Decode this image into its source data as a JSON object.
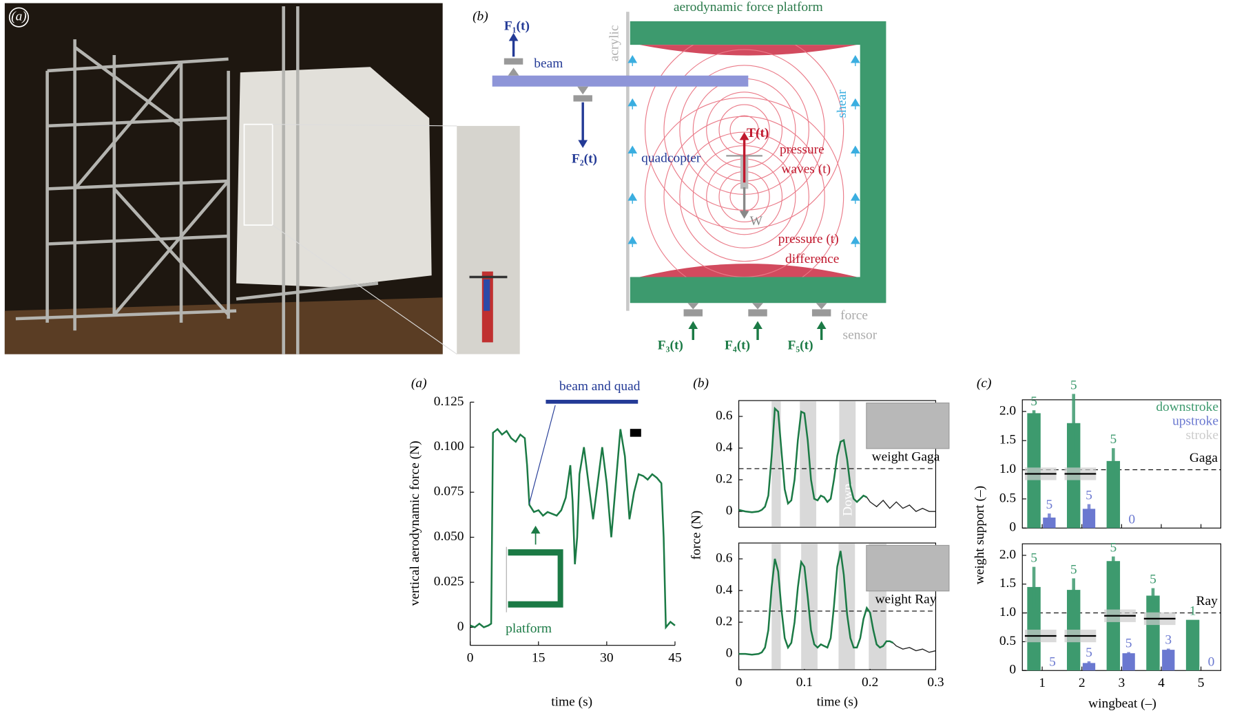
{
  "photo": {
    "label": "(a)"
  },
  "diagram": {
    "label": "(b)",
    "title": "aerodynamic force platform",
    "f1": "F₁(t)",
    "f2": "F₂(t)",
    "beam": "beam",
    "acrylic": "acrylic",
    "quadcopter": "quadcopter",
    "thrust": "T(t)",
    "weight": "W",
    "pressure_waves": [
      "pressure",
      "waves (t)"
    ],
    "shear": "shear",
    "pressure_difference": [
      "pressure (t)",
      "difference"
    ],
    "f3": "F₃(t)",
    "f4": "F₄(t)",
    "f5": "F₅(t)",
    "force_sensor": [
      "force",
      "sensor"
    ]
  },
  "chart_data": [
    {
      "type": "line",
      "panel": "(a)",
      "y_label": "vertical aerodynamic force (N)",
      "x_label": "time (s)",
      "beam_label": "beam and quad",
      "platform_label": "platform",
      "xlim": [
        0,
        45
      ],
      "xticks": [
        0,
        15,
        30,
        45
      ],
      "ylim": [
        -0.01,
        0.125
      ],
      "yticks": [
        0,
        0.025,
        {
          "value": 0.05,
          "label": "0.050"
        },
        0.075,
        {
          "value": 0.1,
          "label": "0.100"
        },
        0.125
      ],
      "x": [
        0,
        1,
        2,
        3,
        4,
        4.6,
        5,
        6,
        7,
        8,
        9,
        10,
        11,
        12,
        12.5,
        13,
        14,
        15,
        16,
        17,
        18,
        19,
        20,
        21,
        22,
        22.5,
        23,
        23.5,
        24,
        25,
        26,
        27,
        28,
        29,
        30,
        31,
        32,
        33,
        34,
        35,
        36,
        37,
        38,
        39,
        40,
        41,
        42,
        42.5,
        43,
        44,
        45
      ],
      "series": [
        {
          "color": "#1b7a45",
          "values": [
            0.001,
            0.0,
            0.002,
            0.0,
            0.001,
            0.002,
            0.108,
            0.11,
            0.107,
            0.109,
            0.105,
            0.103,
            0.107,
            0.105,
            0.09,
            0.068,
            0.064,
            0.065,
            0.062,
            0.064,
            0.063,
            0.062,
            0.065,
            0.072,
            0.09,
            0.07,
            0.035,
            0.05,
            0.085,
            0.1,
            0.08,
            0.06,
            0.08,
            0.1,
            0.08,
            0.05,
            0.08,
            0.11,
            0.095,
            0.06,
            0.075,
            0.085,
            0.084,
            0.082,
            0.085,
            0.083,
            0.08,
            0.05,
            0.0,
            0.003,
            0.001
          ]
        }
      ]
    },
    {
      "type": "line",
      "panel": "(b)",
      "y_label": "force (N)",
      "weight_label": "weight Gaga",
      "stroke_label": "Down",
      "weight": 0.27,
      "xlim": [
        0,
        0.3
      ],
      "ylim": [
        -0.1,
        0.7
      ],
      "yticks": [
        0,
        0.2,
        0.4,
        0.6
      ],
      "bands": [
        [
          0.05,
          0.064
        ],
        [
          0.093,
          0.118
        ],
        [
          0.153,
          0.178
        ]
      ],
      "x": [
        0,
        0.01,
        0.02,
        0.03,
        0.035,
        0.04,
        0.045,
        0.05,
        0.055,
        0.06,
        0.065,
        0.07,
        0.075,
        0.08,
        0.085,
        0.09,
        0.095,
        0.1,
        0.105,
        0.11,
        0.115,
        0.12,
        0.125,
        0.13,
        0.135,
        0.14,
        0.145,
        0.15,
        0.155,
        0.16,
        0.165,
        0.17,
        0.175,
        0.18,
        0.185,
        0.19,
        0.195,
        0.2,
        0.21,
        0.22,
        0.23,
        0.24,
        0.25,
        0.26,
        0.27,
        0.28,
        0.29,
        0.3
      ],
      "series": [
        {
          "color": "#1b7a45",
          "values": [
            0.01,
            0.0,
            -0.005,
            0.0,
            0.01,
            0.03,
            0.1,
            0.35,
            0.65,
            0.63,
            0.38,
            0.14,
            0.05,
            0.07,
            0.2,
            0.45,
            0.63,
            0.62,
            0.45,
            0.2,
            0.08,
            0.07,
            0.1,
            0.09,
            0.06,
            0.08,
            0.2,
            0.35,
            0.44,
            0.45,
            0.33,
            0.16,
            0.08,
            0.06,
            0.08,
            0.1,
            0.09,
            null,
            null,
            null,
            null,
            null,
            null,
            null,
            null,
            null,
            null,
            null
          ]
        },
        {
          "color": "#222222",
          "values": [
            null,
            null,
            null,
            null,
            null,
            null,
            null,
            null,
            null,
            null,
            null,
            null,
            null,
            null,
            null,
            null,
            null,
            null,
            null,
            null,
            null,
            null,
            null,
            null,
            null,
            null,
            null,
            null,
            null,
            null,
            null,
            null,
            null,
            null,
            null,
            null,
            0.09,
            0.06,
            0.03,
            0.07,
            0.02,
            0.06,
            0.02,
            0.04,
            0.0,
            0.02,
            0.0,
            0.0
          ]
        }
      ]
    },
    {
      "type": "line",
      "x_label": "time (s)",
      "weight_label": "weight Ray",
      "weight": 0.27,
      "xlim": [
        0,
        0.3
      ],
      "xticks": [
        0,
        0.1,
        0.2,
        0.3
      ],
      "ylim": [
        -0.1,
        0.7
      ],
      "yticks": [
        0,
        0.2,
        0.4,
        0.6
      ],
      "bands": [
        [
          0.05,
          0.064
        ],
        [
          0.095,
          0.12
        ],
        [
          0.152,
          0.177
        ],
        [
          0.198,
          0.225
        ]
      ],
      "x": [
        0,
        0.01,
        0.02,
        0.03,
        0.035,
        0.04,
        0.045,
        0.05,
        0.055,
        0.06,
        0.065,
        0.07,
        0.075,
        0.08,
        0.085,
        0.09,
        0.095,
        0.1,
        0.105,
        0.11,
        0.115,
        0.12,
        0.125,
        0.13,
        0.135,
        0.14,
        0.145,
        0.15,
        0.155,
        0.16,
        0.165,
        0.17,
        0.175,
        0.18,
        0.185,
        0.19,
        0.195,
        0.2,
        0.205,
        0.21,
        0.215,
        0.22,
        0.225,
        0.23,
        0.235,
        0.24,
        0.25,
        0.26,
        0.27,
        0.28,
        0.29,
        0.3
      ],
      "series": [
        {
          "color": "#1b7a45",
          "values": [
            0.0,
            0.0,
            -0.005,
            0.0,
            0.01,
            0.04,
            0.15,
            0.42,
            0.6,
            0.52,
            0.28,
            0.1,
            0.04,
            0.07,
            0.2,
            0.42,
            0.58,
            0.55,
            0.36,
            0.15,
            0.06,
            0.04,
            0.06,
            0.05,
            0.04,
            0.1,
            0.3,
            0.55,
            0.65,
            0.5,
            0.25,
            0.1,
            0.04,
            0.04,
            0.1,
            0.22,
            0.29,
            0.26,
            0.15,
            0.06,
            0.04,
            0.05,
            0.08,
            0.08,
            0.07,
            null,
            null,
            null,
            null,
            null,
            null,
            null
          ]
        },
        {
          "color": "#222222",
          "values": [
            null,
            null,
            null,
            null,
            null,
            null,
            null,
            null,
            null,
            null,
            null,
            null,
            null,
            null,
            null,
            null,
            null,
            null,
            null,
            null,
            null,
            null,
            null,
            null,
            null,
            null,
            null,
            null,
            null,
            null,
            null,
            null,
            null,
            null,
            null,
            null,
            null,
            null,
            null,
            null,
            null,
            null,
            null,
            null,
            0.07,
            0.05,
            0.03,
            0.04,
            0.02,
            0.03,
            0.01,
            0.02
          ]
        }
      ]
    },
    {
      "type": "bar",
      "panel": "(c)",
      "y_label": "weight support (–)",
      "subject": "Gaga",
      "reference": 1,
      "legend": true,
      "categories": [
        null,
        null,
        null,
        null,
        null
      ],
      "ylim": [
        0,
        2.2
      ],
      "yticks": [
        0,
        0.5,
        {
          "value": 1,
          "label": "1.0"
        },
        1.5,
        {
          "value": 2,
          "label": "2.0"
        }
      ],
      "series": [
        {
          "name": "downstroke",
          "color": "#3d9a6e",
          "values": [
            1.97,
            1.8,
            1.15,
            null,
            null
          ],
          "errors": [
            0.05,
            0.5,
            0.22,
            null,
            null
          ],
          "n": [
            5,
            5,
            5,
            null,
            null
          ]
        },
        {
          "name": "upstroke",
          "color": "#6a78d0",
          "values": [
            0.18,
            0.33,
            null,
            null,
            null
          ],
          "errors": [
            0.07,
            0.08,
            null,
            null,
            null
          ],
          "n": [
            5,
            5,
            0,
            null,
            null
          ]
        },
        {
          "name": "stroke",
          "color": "#cccccc",
          "values": [
            0.93,
            0.93,
            null,
            null,
            null
          ]
        }
      ]
    },
    {
      "type": "bar",
      "x_label": "wingbeat (–)",
      "subject": "Ray",
      "reference": 1,
      "categories": [
        "1",
        "2",
        "3",
        "4",
        "5"
      ],
      "ylim": [
        0,
        2.2
      ],
      "yticks": [
        0,
        0.5,
        {
          "value": 1,
          "label": "1.0"
        },
        1.5,
        {
          "value": 2,
          "label": "2.0"
        }
      ],
      "series": [
        {
          "color": "#3d9a6e",
          "values": [
            1.45,
            1.4,
            1.9,
            1.3,
            0.88
          ],
          "errors": [
            0.35,
            0.2,
            0.08,
            0.13,
            null
          ],
          "n": [
            5,
            5,
            5,
            5,
            1
          ]
        },
        {
          "color": "#6a78d0",
          "values": [
            null,
            0.13,
            0.3,
            0.36,
            null
          ],
          "errors": [
            null,
            0.03,
            0.02,
            0.02,
            null
          ],
          "n": [
            5,
            5,
            5,
            3,
            0
          ]
        },
        {
          "color": "#cccccc",
          "values": [
            0.6,
            0.6,
            0.95,
            0.9,
            null
          ]
        }
      ]
    }
  ]
}
